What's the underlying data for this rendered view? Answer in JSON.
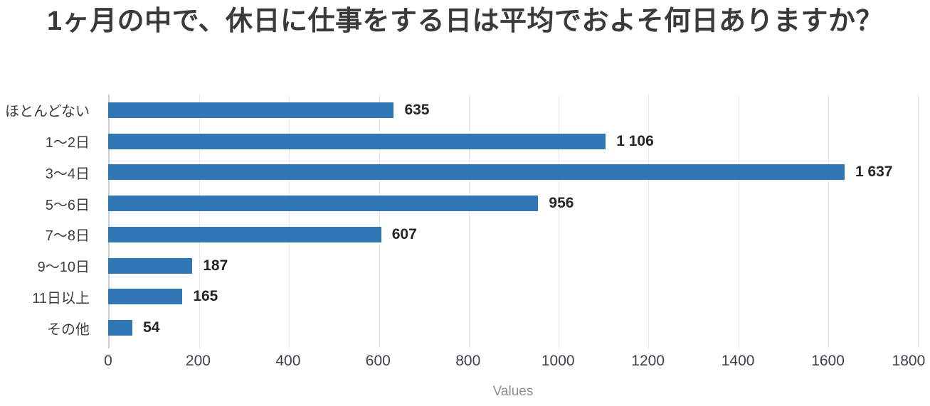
{
  "title": "1ヶ月の中で、休日に仕事をする日は平均でおよそ何日ありますか？",
  "chart_data": {
    "type": "bar",
    "orientation": "horizontal",
    "title": "1ヶ月の中で、休日に仕事をする日は平均でおよそ何日ありますか？",
    "categories": [
      "ほとんどない",
      "1～2日",
      "3～4日",
      "5～6日",
      "7～8日",
      "9～10日",
      "11日以上",
      "その他"
    ],
    "values": [
      635,
      1106,
      1637,
      956,
      607,
      187,
      165,
      54
    ],
    "value_labels": [
      "635",
      "1 106",
      "1 637",
      "956",
      "607",
      "187",
      "165",
      "54"
    ],
    "xlabel": "Values",
    "xlim": [
      0,
      1800
    ],
    "xticks": [
      0,
      200,
      400,
      600,
      800,
      1000,
      1200,
      1400,
      1600,
      1800
    ],
    "grid": true,
    "legend": false,
    "colors": {
      "bar": "#2f78b5",
      "axis_line": "#c9cce8",
      "gridline": "#e8e8e8",
      "title_text": "#3a3a3a",
      "category_text": "#3f3f3f",
      "value_text": "#262626",
      "tick_text": "#3d4148",
      "xlabel_text": "#909090"
    }
  }
}
